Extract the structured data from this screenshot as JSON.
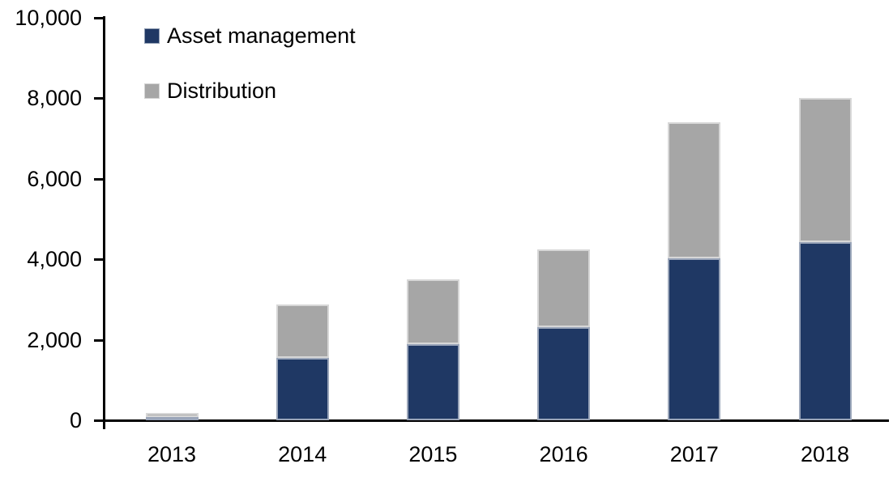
{
  "chart_data": {
    "type": "bar",
    "stacked": true,
    "title": "",
    "xlabel": "",
    "ylabel": "",
    "categories": [
      "2013",
      "2014",
      "2015",
      "2016",
      "2017",
      "2018"
    ],
    "series": [
      {
        "name": "Asset management",
        "color": "#1F3864",
        "values": [
          90,
          1550,
          1900,
          2310,
          4030,
          4430
        ]
      },
      {
        "name": "Distribution",
        "color": "#A6A6A6",
        "values": [
          100,
          1320,
          1600,
          1940,
          3370,
          3570
        ]
      }
    ],
    "stack_totals": [
      190,
      2870,
      3500,
      4250,
      7400,
      8000
    ],
    "ylim": [
      0,
      10000
    ],
    "yticks": [
      0,
      2000,
      4000,
      6000,
      8000,
      10000
    ],
    "ytick_labels": [
      "0",
      "2,000",
      "4,000",
      "6,000",
      "8,000",
      "10,000"
    ],
    "grid": false,
    "legend_position": "top-left",
    "axis_color": "#000000",
    "background_color": "#FFFFFF"
  }
}
